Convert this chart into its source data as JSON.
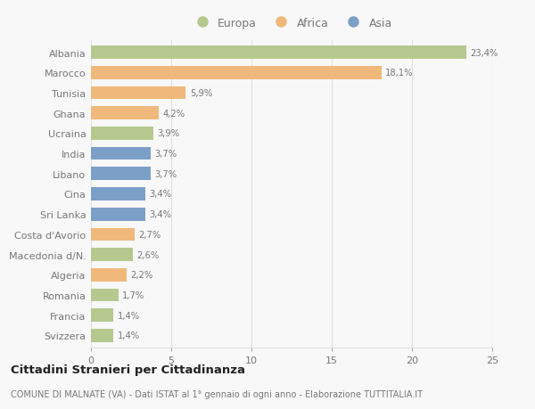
{
  "countries": [
    "Albania",
    "Marocco",
    "Tunisia",
    "Ghana",
    "Ucraina",
    "India",
    "Libano",
    "Cina",
    "Sri Lanka",
    "Costa d'Avorio",
    "Macedonia d/N.",
    "Algeria",
    "Romania",
    "Francia",
    "Svizzera"
  ],
  "values": [
    23.4,
    18.1,
    5.9,
    4.2,
    3.9,
    3.7,
    3.7,
    3.4,
    3.4,
    2.7,
    2.6,
    2.2,
    1.7,
    1.4,
    1.4
  ],
  "labels": [
    "23,4%",
    "18,1%",
    "5,9%",
    "4,2%",
    "3,9%",
    "3,7%",
    "3,7%",
    "3,4%",
    "3,4%",
    "2,7%",
    "2,6%",
    "2,2%",
    "1,7%",
    "1,4%",
    "1,4%"
  ],
  "continents": [
    "Europa",
    "Africa",
    "Africa",
    "Africa",
    "Europa",
    "Asia",
    "Asia",
    "Asia",
    "Asia",
    "Africa",
    "Europa",
    "Africa",
    "Europa",
    "Europa",
    "Europa"
  ],
  "colors": {
    "Europa": "#b5c98e",
    "Africa": "#f0b87a",
    "Asia": "#7b9fc7"
  },
  "title": "Cittadini Stranieri per Cittadinanza",
  "subtitle": "COMUNE DI MALNATE (VA) - Dati ISTAT al 1° gennaio di ogni anno - Elaborazione TUTTITALIA.IT",
  "xlim": [
    0,
    25
  ],
  "xticks": [
    0,
    5,
    10,
    15,
    20,
    25
  ],
  "background_color": "#f8f8f8",
  "grid_color": "#e0e0e0",
  "bar_height": 0.65
}
